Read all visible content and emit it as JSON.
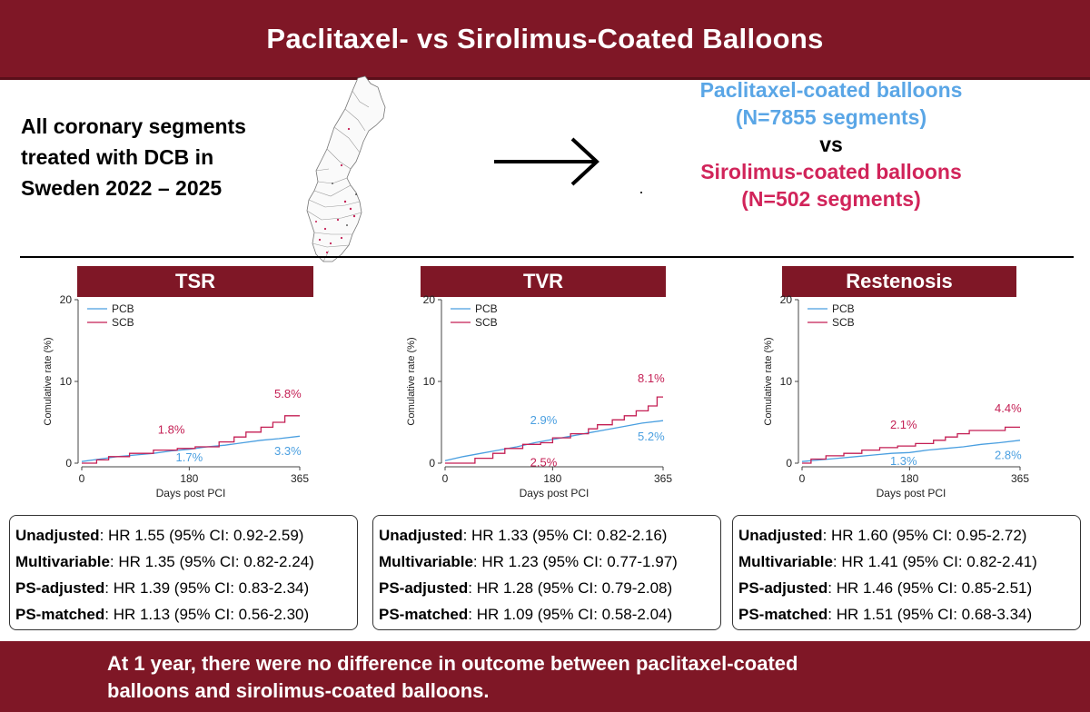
{
  "title": "Paclitaxel- vs Sirolimus-Coated Balloons",
  "intro": [
    "All coronary segments",
    "treated with DCB in",
    "Sweden 2022 – 2025"
  ],
  "comparison": {
    "pcb_line1": "Paclitaxel-coated balloons",
    "pcb_line2": "(N=7855 segments)",
    "vs": "vs",
    "scb_line1": "Sirolimus-coated balloons",
    "scb_line2": "(N=502 segments)"
  },
  "colors": {
    "banner": "#7f1726",
    "pcb": "#4a9fe0",
    "scb": "#c41f54"
  },
  "icons": {
    "map": "sweden-map-icon",
    "arrow": "arrow-right-icon"
  },
  "chart_data": [
    {
      "type": "line",
      "title": "TSR",
      "xlabel": "Days post PCI",
      "ylabel": "Comulative rate (%)",
      "xlim": [
        0,
        365
      ],
      "ylim": [
        0,
        20
      ],
      "xticks": [
        0,
        180,
        365
      ],
      "yticks": [
        0,
        10,
        20
      ],
      "legend": "top-left",
      "series": [
        {
          "name": "PCB",
          "color": "#4a9fe0",
          "x": [
            0,
            30,
            60,
            90,
            120,
            150,
            180,
            210,
            240,
            270,
            300,
            330,
            365
          ],
          "y": [
            0.2,
            0.5,
            0.8,
            1.0,
            1.2,
            1.5,
            1.7,
            2.0,
            2.2,
            2.5,
            2.8,
            3.0,
            3.3
          ]
        },
        {
          "name": "SCB",
          "color": "#c41f54",
          "x": [
            0,
            25,
            25,
            45,
            45,
            80,
            80,
            120,
            120,
            160,
            160,
            190,
            190,
            230,
            230,
            255,
            255,
            275,
            275,
            300,
            300,
            320,
            320,
            340,
            340,
            365
          ],
          "y": [
            0,
            0,
            0.4,
            0.4,
            0.8,
            0.8,
            1.2,
            1.2,
            1.6,
            1.6,
            1.8,
            1.8,
            2.0,
            2.0,
            2.6,
            2.6,
            3.2,
            3.2,
            3.8,
            3.8,
            4.4,
            4.4,
            5.0,
            5.0,
            5.8,
            5.8
          ]
        }
      ],
      "annotations": [
        {
          "text": "1.8%",
          "series": "SCB",
          "x": 150,
          "y": 3.6
        },
        {
          "text": "1.7%",
          "series": "PCB",
          "x": 180,
          "y": 0.2
        },
        {
          "text": "5.8%",
          "series": "SCB",
          "x": 345,
          "y": 8.0
        },
        {
          "text": "3.3%",
          "series": "PCB",
          "x": 345,
          "y": 1.0
        }
      ]
    },
    {
      "type": "line",
      "title": "TVR",
      "xlabel": "Days post PCI",
      "ylabel": "Comulative rate (%)",
      "xlim": [
        0,
        365
      ],
      "ylim": [
        0,
        20
      ],
      "xticks": [
        0,
        180,
        365
      ],
      "yticks": [
        0,
        10,
        20
      ],
      "legend": "top-left",
      "series": [
        {
          "name": "PCB",
          "color": "#4a9fe0",
          "x": [
            0,
            30,
            60,
            90,
            120,
            150,
            180,
            210,
            240,
            270,
            300,
            330,
            365
          ],
          "y": [
            0.3,
            0.8,
            1.2,
            1.6,
            2.0,
            2.5,
            2.9,
            3.3,
            3.7,
            4.1,
            4.5,
            4.9,
            5.2
          ]
        },
        {
          "name": "SCB",
          "color": "#c41f54",
          "x": [
            0,
            50,
            50,
            80,
            80,
            100,
            100,
            130,
            130,
            160,
            160,
            180,
            180,
            210,
            210,
            240,
            240,
            255,
            255,
            280,
            280,
            300,
            300,
            320,
            320,
            340,
            340,
            355,
            355,
            365
          ],
          "y": [
            0,
            0,
            0.6,
            0.6,
            1.2,
            1.2,
            1.8,
            1.8,
            2.3,
            2.3,
            2.5,
            2.5,
            3.1,
            3.1,
            3.6,
            3.6,
            4.2,
            4.2,
            4.7,
            4.7,
            5.3,
            5.3,
            5.8,
            5.8,
            6.4,
            6.4,
            7.0,
            7.0,
            8.1,
            8.1
          ]
        }
      ],
      "annotations": [
        {
          "text": "2.9%",
          "series": "PCB",
          "x": 165,
          "y": 4.8
        },
        {
          "text": "2.5%",
          "series": "SCB",
          "x": 165,
          "y": -0.4
        },
        {
          "text": "8.1%",
          "series": "SCB",
          "x": 345,
          "y": 9.9
        },
        {
          "text": "5.2%",
          "series": "PCB",
          "x": 345,
          "y": 2.8
        }
      ]
    },
    {
      "type": "line",
      "title": "Restenosis",
      "xlabel": "Days post PCI",
      "ylabel": "Comulative rate (%)",
      "xlim": [
        0,
        365
      ],
      "ylim": [
        0,
        20
      ],
      "xticks": [
        0,
        180,
        365
      ],
      "yticks": [
        0,
        10,
        20
      ],
      "legend": "top-left",
      "series": [
        {
          "name": "PCB",
          "color": "#4a9fe0",
          "x": [
            0,
            30,
            60,
            90,
            120,
            150,
            180,
            210,
            240,
            270,
            300,
            330,
            365
          ],
          "y": [
            0.2,
            0.4,
            0.6,
            0.8,
            1.0,
            1.2,
            1.3,
            1.6,
            1.8,
            2.0,
            2.3,
            2.5,
            2.8
          ]
        },
        {
          "name": "SCB",
          "color": "#c41f54",
          "x": [
            0,
            15,
            15,
            40,
            40,
            70,
            70,
            100,
            100,
            130,
            130,
            160,
            160,
            190,
            190,
            220,
            220,
            240,
            240,
            260,
            260,
            280,
            280,
            300,
            300,
            340,
            340,
            365
          ],
          "y": [
            0,
            0,
            0.5,
            0.5,
            0.9,
            0.9,
            1.2,
            1.2,
            1.6,
            1.6,
            1.9,
            1.9,
            2.1,
            2.1,
            2.4,
            2.4,
            2.8,
            2.8,
            3.2,
            3.2,
            3.6,
            3.6,
            4.0,
            4.0,
            4.0,
            4.0,
            4.4,
            4.4
          ]
        }
      ],
      "annotations": [
        {
          "text": "2.1%",
          "series": "SCB",
          "x": 170,
          "y": 4.2
        },
        {
          "text": "1.3%",
          "series": "PCB",
          "x": 170,
          "y": -0.2
        },
        {
          "text": "4.4%",
          "series": "SCB",
          "x": 345,
          "y": 6.2
        },
        {
          "text": "2.8%",
          "series": "PCB",
          "x": 345,
          "y": 0.5
        }
      ]
    }
  ],
  "hr_boxes": [
    {
      "rows": [
        {
          "label": "Unadjusted",
          "value": ": HR 1.55 (95% CI: 0.92-2.59)"
        },
        {
          "label": "Multivariable",
          "value": ": HR 1.35 (95% CI: 0.82-2.24)"
        },
        {
          "label": "PS-adjusted",
          "value": ": HR 1.39 (95% CI: 0.83-2.34)"
        },
        {
          "label": "PS-matched",
          "value": ": HR 1.13 (95% CI: 0.56-2.30)"
        }
      ]
    },
    {
      "rows": [
        {
          "label": "Unadjusted",
          "value": ": HR 1.33 (95% CI: 0.82-2.16)"
        },
        {
          "label": "Multivariable",
          "value": ": HR 1.23 (95% CI: 0.77-1.97)"
        },
        {
          "label": "PS-adjusted",
          "value": ": HR 1.28 (95% CI: 0.79-2.08)"
        },
        {
          "label": "PS-matched",
          "value": ": HR 1.09 (95% CI: 0.58-2.04)"
        }
      ]
    },
    {
      "rows": [
        {
          "label": "Unadjusted",
          "value": ": HR 1.60 (95% CI: 0.95-2.72)"
        },
        {
          "label": "Multivariable",
          "value": ": HR 1.41 (95% CI: 0.82-2.41)"
        },
        {
          "label": "PS-adjusted",
          "value": ": HR 1.46 (95% CI: 0.85-2.51)"
        },
        {
          "label": "PS-matched",
          "value": ": HR 1.51 (95% CI: 0.68-3.34)"
        }
      ]
    }
  ],
  "conclusion": [
    "At 1 year, there were no difference in outcome between paclitaxel-coated",
    "balloons and sirolimus-coated balloons."
  ]
}
